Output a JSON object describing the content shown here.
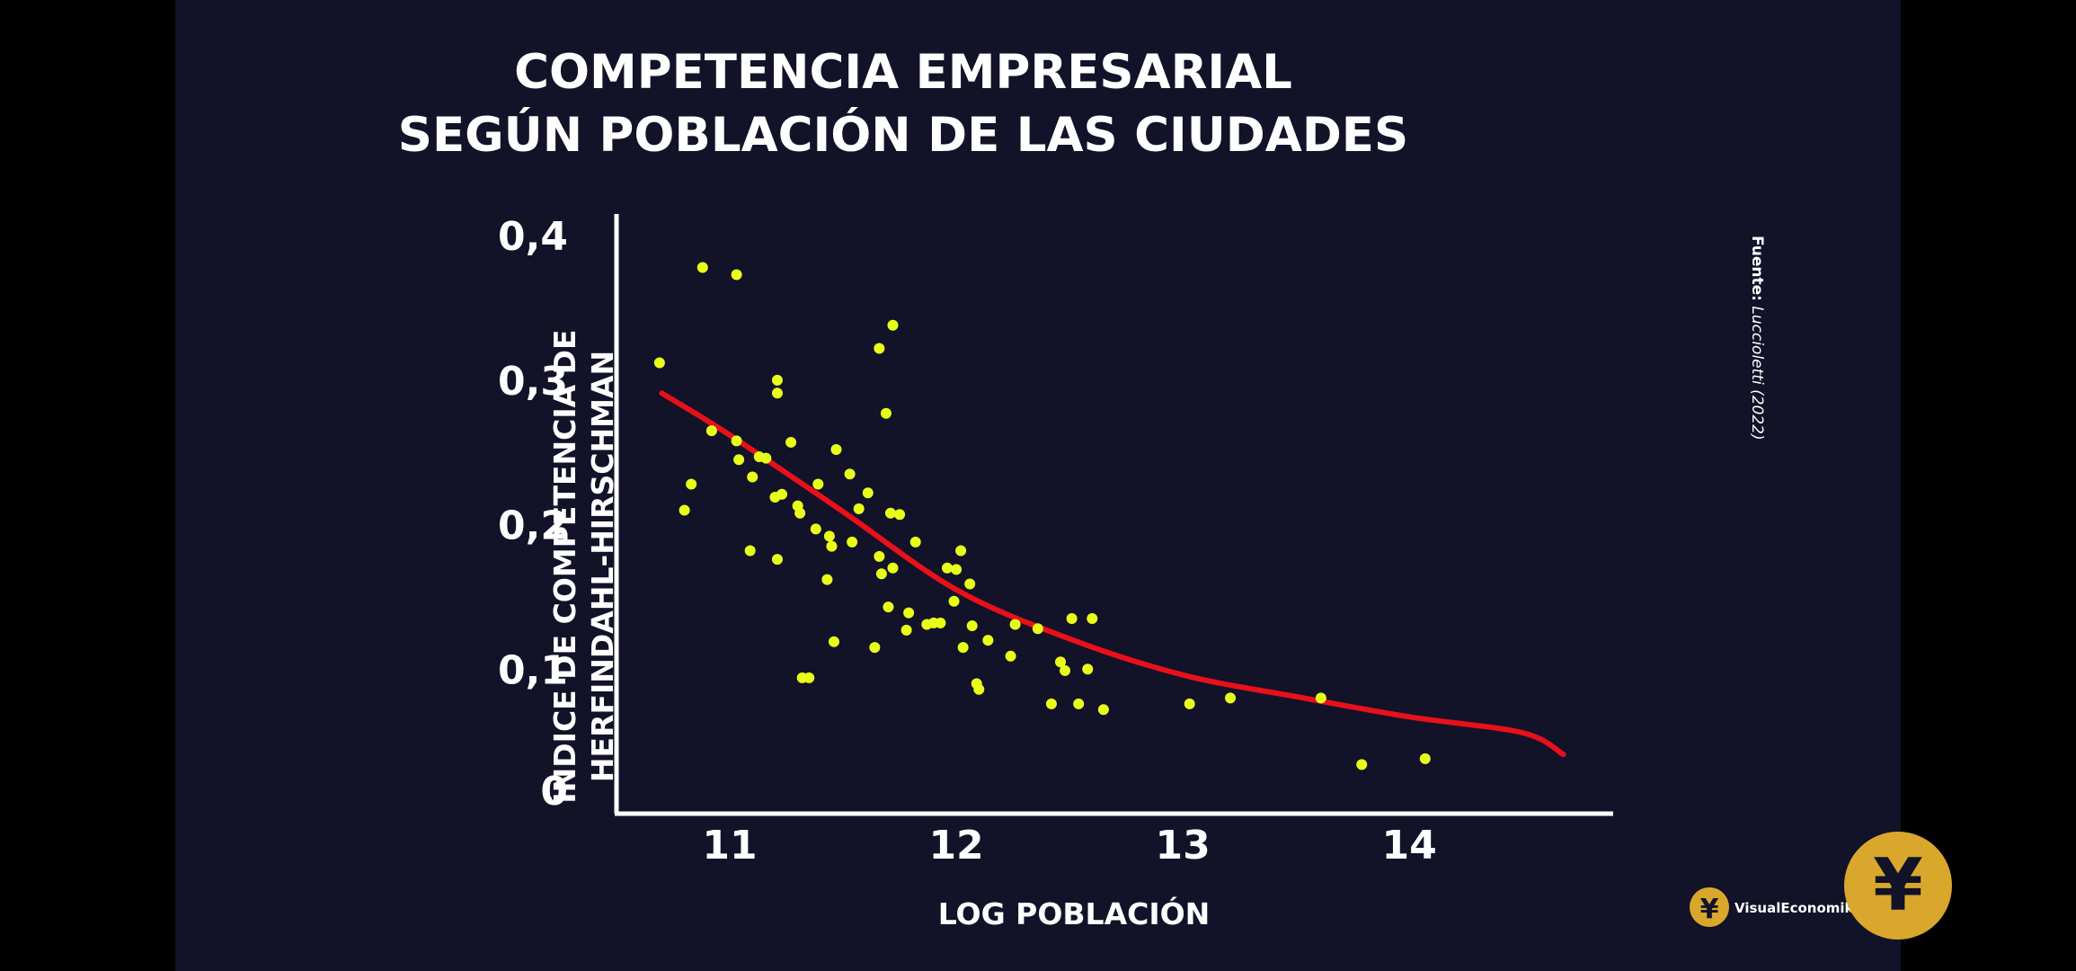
{
  "chart_data": {
    "type": "scatter",
    "title_lines": [
      "COMPETENCIA EMPRESARIAL",
      "SEGÚN POBLACIÓN DE LAS CIUDADES"
    ],
    "xlabel": "LOG POBLACIÓN",
    "ylabel_lines": [
      "ÍNDICE DE COMPETENCIA DE",
      "HERFINDAHL-HIRSCHMAN"
    ],
    "xlim": [
      10.5,
      14.9
    ],
    "ylim": [
      0,
      0.415
    ],
    "xticks": [
      11,
      12,
      13,
      14
    ],
    "xtick_labels": [
      "11",
      "12",
      "13",
      "14"
    ],
    "yticks": [
      0,
      0.1,
      0.2,
      0.3,
      0.4
    ],
    "ytick_labels": [
      "0",
      "0,1",
      "0,2",
      "0,3",
      "0,4"
    ],
    "grid": false,
    "points": [
      {
        "x": 10.69,
        "y": 0.312
      },
      {
        "x": 10.8,
        "y": 0.21
      },
      {
        "x": 10.83,
        "y": 0.228
      },
      {
        "x": 10.88,
        "y": 0.378
      },
      {
        "x": 10.92,
        "y": 0.265
      },
      {
        "x": 11.03,
        "y": 0.373
      },
      {
        "x": 11.03,
        "y": 0.258
      },
      {
        "x": 11.04,
        "y": 0.245
      },
      {
        "x": 11.09,
        "y": 0.182
      },
      {
        "x": 11.1,
        "y": 0.233
      },
      {
        "x": 11.13,
        "y": 0.247
      },
      {
        "x": 11.16,
        "y": 0.246
      },
      {
        "x": 11.2,
        "y": 0.219
      },
      {
        "x": 11.21,
        "y": 0.3
      },
      {
        "x": 11.21,
        "y": 0.291
      },
      {
        "x": 11.21,
        "y": 0.176
      },
      {
        "x": 11.23,
        "y": 0.221
      },
      {
        "x": 11.27,
        "y": 0.257
      },
      {
        "x": 11.3,
        "y": 0.213
      },
      {
        "x": 11.31,
        "y": 0.208
      },
      {
        "x": 11.32,
        "y": 0.094
      },
      {
        "x": 11.35,
        "y": 0.094
      },
      {
        "x": 11.38,
        "y": 0.197
      },
      {
        "x": 11.39,
        "y": 0.228
      },
      {
        "x": 11.43,
        "y": 0.162
      },
      {
        "x": 11.44,
        "y": 0.192
      },
      {
        "x": 11.45,
        "y": 0.185
      },
      {
        "x": 11.46,
        "y": 0.119
      },
      {
        "x": 11.47,
        "y": 0.252
      },
      {
        "x": 11.53,
        "y": 0.235
      },
      {
        "x": 11.54,
        "y": 0.188
      },
      {
        "x": 11.57,
        "y": 0.211
      },
      {
        "x": 11.61,
        "y": 0.222
      },
      {
        "x": 11.64,
        "y": 0.115
      },
      {
        "x": 11.66,
        "y": 0.322
      },
      {
        "x": 11.66,
        "y": 0.178
      },
      {
        "x": 11.67,
        "y": 0.166
      },
      {
        "x": 11.69,
        "y": 0.277
      },
      {
        "x": 11.7,
        "y": 0.143
      },
      {
        "x": 11.71,
        "y": 0.208
      },
      {
        "x": 11.72,
        "y": 0.338
      },
      {
        "x": 11.72,
        "y": 0.17
      },
      {
        "x": 11.75,
        "y": 0.207
      },
      {
        "x": 11.78,
        "y": 0.127
      },
      {
        "x": 11.79,
        "y": 0.139
      },
      {
        "x": 11.82,
        "y": 0.188
      },
      {
        "x": 11.87,
        "y": 0.131
      },
      {
        "x": 11.9,
        "y": 0.132
      },
      {
        "x": 11.93,
        "y": 0.132
      },
      {
        "x": 11.96,
        "y": 0.17
      },
      {
        "x": 11.99,
        "y": 0.147
      },
      {
        "x": 12.0,
        "y": 0.169
      },
      {
        "x": 12.02,
        "y": 0.182
      },
      {
        "x": 12.03,
        "y": 0.115
      },
      {
        "x": 12.06,
        "y": 0.159
      },
      {
        "x": 12.07,
        "y": 0.13
      },
      {
        "x": 12.09,
        "y": 0.09
      },
      {
        "x": 12.1,
        "y": 0.086
      },
      {
        "x": 12.14,
        "y": 0.12
      },
      {
        "x": 12.24,
        "y": 0.109
      },
      {
        "x": 12.26,
        "y": 0.131
      },
      {
        "x": 12.36,
        "y": 0.128
      },
      {
        "x": 12.42,
        "y": 0.076
      },
      {
        "x": 12.46,
        "y": 0.105
      },
      {
        "x": 12.48,
        "y": 0.099
      },
      {
        "x": 12.51,
        "y": 0.135
      },
      {
        "x": 12.54,
        "y": 0.076
      },
      {
        "x": 12.58,
        "y": 0.1
      },
      {
        "x": 12.6,
        "y": 0.135
      },
      {
        "x": 12.65,
        "y": 0.072
      },
      {
        "x": 13.03,
        "y": 0.076
      },
      {
        "x": 13.21,
        "y": 0.08
      },
      {
        "x": 13.61,
        "y": 0.08
      },
      {
        "x": 13.79,
        "y": 0.034
      },
      {
        "x": 14.07,
        "y": 0.038
      }
    ],
    "series": [
      {
        "name": "fit",
        "type": "line",
        "x": [
          10.7,
          11.0,
          11.5,
          12.0,
          12.5,
          13.0,
          13.5,
          14.0,
          14.5,
          14.68
        ],
        "y": [
          0.291,
          0.262,
          0.209,
          0.155,
          0.121,
          0.096,
          0.081,
          0.067,
          0.056,
          0.041
        ]
      }
    ],
    "colors": {
      "points": "#e8ff1a",
      "fit": "#e8101a",
      "axis": "#ffffff",
      "background": "#121229"
    }
  },
  "source_label": "Fuente:",
  "source_text": "Luccioletti (2022)",
  "brand_name": "VisualEconomik",
  "brand_symbol": "¥",
  "brand_icon": "visualeconomik-logo-icon"
}
